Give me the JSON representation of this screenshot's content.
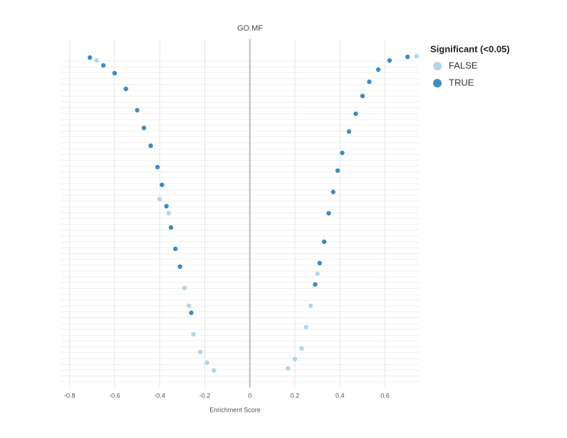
{
  "chart_data": {
    "type": "scatter",
    "title": "GO.MF",
    "x_label": "Enrichment Score",
    "legend_title": "Significant (<0.05)",
    "xlim": [
      -0.84,
      0.75
    ],
    "xticks": [
      -0.8,
      -0.6,
      -0.4,
      -0.2,
      0,
      0.2,
      0.4,
      0.6
    ],
    "ylim": [
      0,
      460
    ],
    "grid": true,
    "series": [
      {
        "name": "FALSE",
        "color": "#a6cee3",
        "x": [
          -0.68,
          -0.4,
          -0.36,
          -0.29,
          -0.27,
          -0.25,
          -0.22,
          -0.19,
          -0.16,
          0.17,
          0.2,
          0.23,
          0.25,
          0.27,
          0.3,
          0.74
        ],
        "values": [
          445,
          250,
          230,
          125,
          100,
          60,
          35,
          20,
          9,
          12,
          25,
          40,
          70,
          100,
          145,
          451
        ]
      },
      {
        "name": "TRUE",
        "color": "#1f78b4",
        "x": [
          -0.71,
          -0.65,
          -0.6,
          -0.55,
          -0.5,
          -0.47,
          -0.44,
          -0.41,
          -0.39,
          -0.37,
          -0.35,
          -0.33,
          -0.31,
          -0.26,
          0.29,
          0.31,
          0.33,
          0.35,
          0.37,
          0.39,
          0.41,
          0.44,
          0.47,
          0.5,
          0.53,
          0.57,
          0.62,
          0.7
        ],
        "values": [
          449,
          438,
          427,
          405,
          375,
          350,
          325,
          295,
          270,
          240,
          210,
          180,
          155,
          90,
          130,
          160,
          190,
          230,
          260,
          290,
          315,
          345,
          370,
          395,
          415,
          432,
          445,
          450
        ]
      }
    ]
  }
}
